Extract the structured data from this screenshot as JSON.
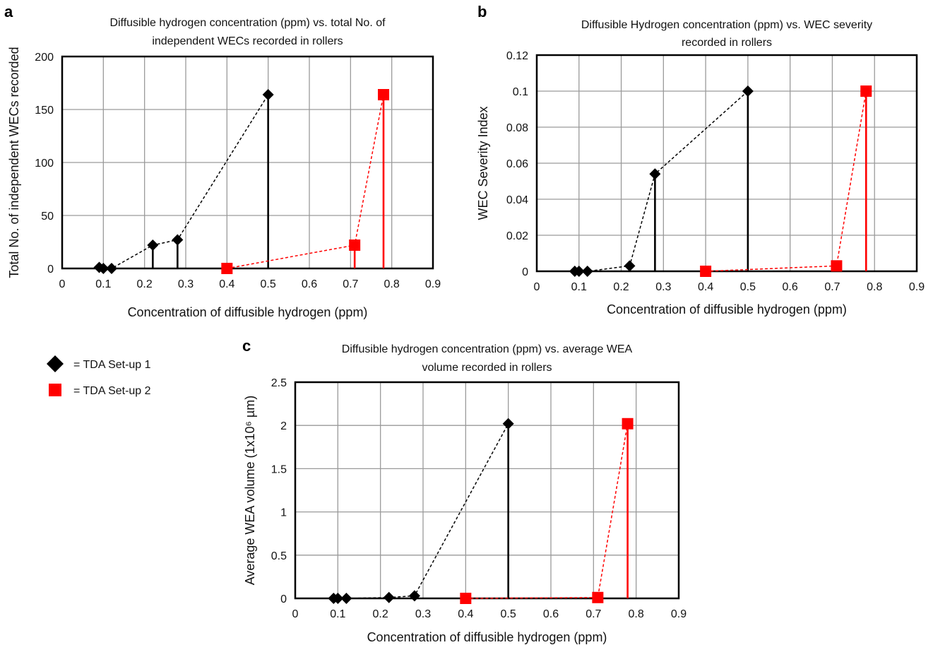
{
  "legend": [
    {
      "marker": "diamond",
      "color": "#000000",
      "label": "= TDA Set-up 1"
    },
    {
      "marker": "square",
      "color": "#ff0000",
      "label": "= TDA Set-up 2"
    }
  ],
  "chart_data": [
    {
      "type": "scatter",
      "panel": "a",
      "title": "Diffusible hydrogen concentration (ppm) vs. total No. of\nindependent WECs recorded in rollers",
      "xlabel": "Concentration of diffusible hydrogen (ppm)",
      "ylabel": "Total No. of independent WECs recorded",
      "xlim": [
        0,
        0.9
      ],
      "ylim": [
        0,
        200
      ],
      "xticks": [
        0,
        0.1,
        0.2,
        0.3,
        0.4,
        0.5,
        0.6,
        0.7,
        0.8,
        0.9
      ],
      "yticks": [
        0,
        50,
        100,
        150,
        200
      ],
      "grid": true,
      "series": [
        {
          "name": "TDA Set-up 1",
          "marker": "diamond",
          "color": "#000000",
          "x": [
            0.09,
            0.1,
            0.12,
            0.22,
            0.28,
            0.5
          ],
          "y": [
            1,
            0,
            0,
            22,
            27,
            164
          ],
          "drop_lines_at": [
            0.22,
            0.28,
            0.5
          ]
        },
        {
          "name": "TDA Set-up 2",
          "marker": "square",
          "color": "#ff0000",
          "x": [
            0.4,
            0.71,
            0.78
          ],
          "y": [
            0,
            22,
            164
          ],
          "drop_lines_at": [
            0.71,
            0.78
          ]
        }
      ]
    },
    {
      "type": "scatter",
      "panel": "b",
      "title": "Diffusible Hydrogen concentration (ppm) vs. WEC severity\nrecorded in rollers",
      "xlabel": "Concentration of diffusible hydrogen (ppm)",
      "ylabel": "WEC Severity Index",
      "xlim": [
        0,
        0.9
      ],
      "ylim": [
        0,
        0.12
      ],
      "xticks": [
        0,
        0.1,
        0.2,
        0.3,
        0.4,
        0.5,
        0.6,
        0.7,
        0.8,
        0.9
      ],
      "yticks": [
        0,
        0.02,
        0.04,
        0.06,
        0.08,
        0.1,
        0.12
      ],
      "grid": true,
      "series": [
        {
          "name": "TDA Set-up 1",
          "marker": "diamond",
          "color": "#000000",
          "x": [
            0.09,
            0.1,
            0.12,
            0.22,
            0.28,
            0.5
          ],
          "y": [
            0,
            0,
            0,
            0.003,
            0.054,
            0.1
          ],
          "drop_lines_at": [
            0.28,
            0.5
          ]
        },
        {
          "name": "TDA Set-up 2",
          "marker": "square",
          "color": "#ff0000",
          "x": [
            0.4,
            0.71,
            0.78
          ],
          "y": [
            0,
            0.003,
            0.1
          ],
          "drop_lines_at": [
            0.71,
            0.78
          ]
        }
      ]
    },
    {
      "type": "scatter",
      "panel": "c",
      "title": "Diffusible hydrogen concentration (ppm) vs. average WEA\nvolume recorded in rollers",
      "xlabel": "Concentration of diffusible hydrogen (ppm)",
      "ylabel": "Average WEA volume (1x10⁶ µm)",
      "xlim": [
        0,
        0.9
      ],
      "ylim": [
        0,
        2.5
      ],
      "xticks": [
        0,
        0.1,
        0.2,
        0.3,
        0.4,
        0.5,
        0.6,
        0.7,
        0.8,
        0.9
      ],
      "yticks": [
        0,
        0.5,
        1,
        1.5,
        2,
        2.5
      ],
      "grid": true,
      "series": [
        {
          "name": "TDA Set-up 1",
          "marker": "diamond",
          "color": "#000000",
          "x": [
            0.09,
            0.1,
            0.12,
            0.22,
            0.28,
            0.5
          ],
          "y": [
            0,
            0,
            0,
            0.01,
            0.03,
            2.02
          ],
          "drop_lines_at": [
            0.5
          ]
        },
        {
          "name": "TDA Set-up 2",
          "marker": "square",
          "color": "#ff0000",
          "x": [
            0.4,
            0.71,
            0.78
          ],
          "y": [
            0,
            0.01,
            2.02
          ],
          "drop_lines_at": [
            0.71,
            0.78
          ]
        }
      ]
    }
  ]
}
